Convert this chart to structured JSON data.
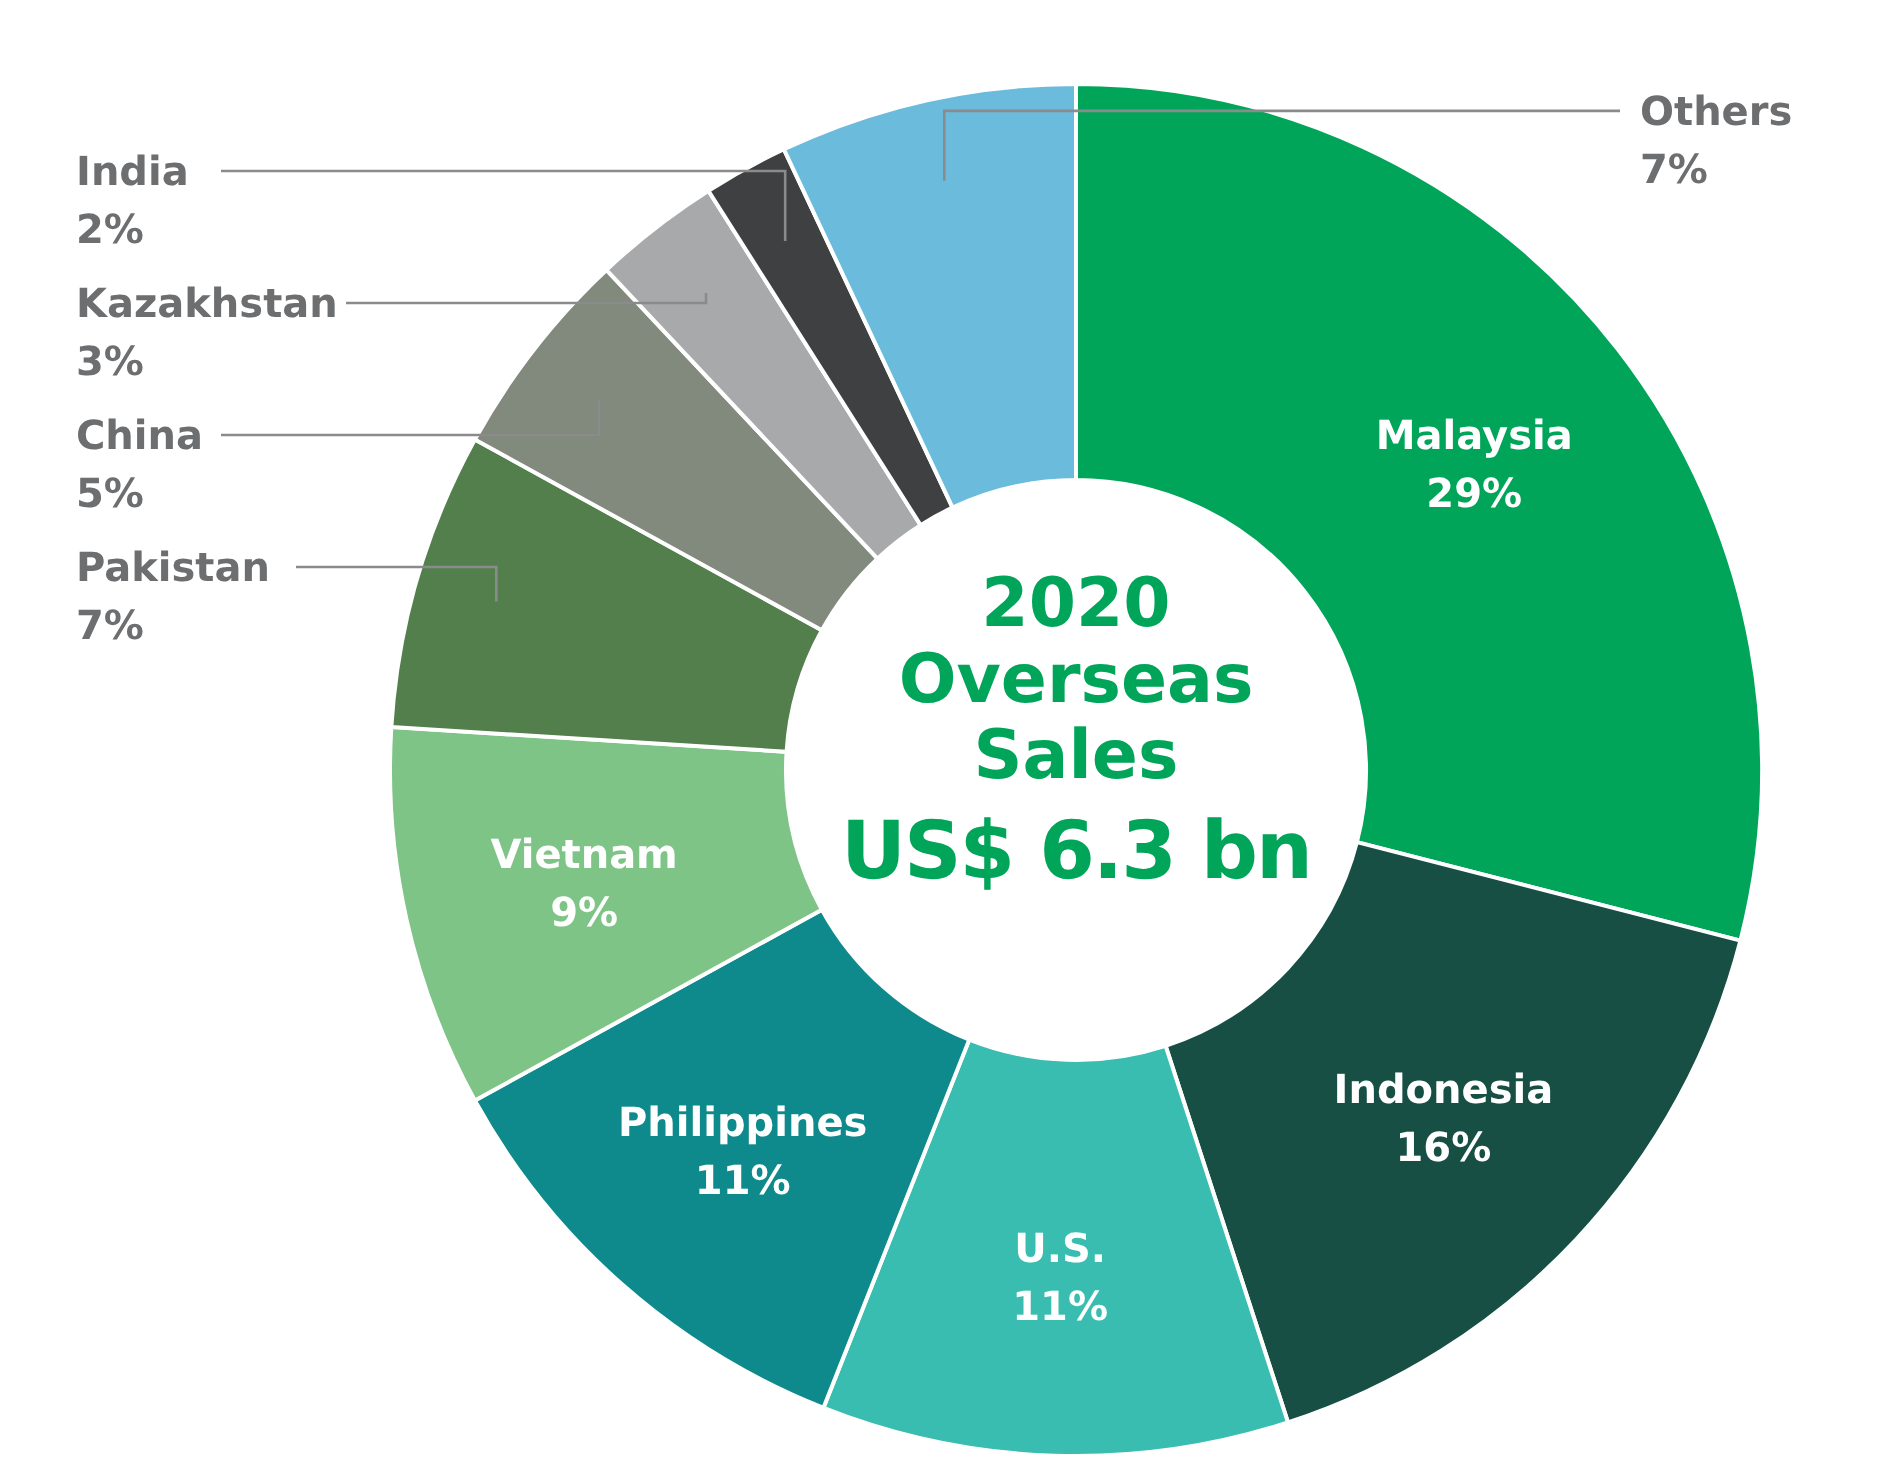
{
  "chart_data": {
    "type": "donut",
    "title": "2020 Overseas Sales",
    "subtitle": "US$ 6.3 bn",
    "categories": [
      "Malaysia",
      "Indonesia",
      "U.S.",
      "Philippines",
      "Vietnam",
      "Pakistan",
      "China",
      "Kazakhstan",
      "India",
      "Others"
    ],
    "values": [
      29,
      16,
      11,
      11,
      9,
      7,
      5,
      3,
      2,
      7
    ],
    "value_labels": [
      "29%",
      "16%",
      "11%",
      "11%",
      "9%",
      "7%",
      "5%",
      "3%",
      "2%",
      "7%"
    ],
    "colors": [
      "#00a55a",
      "#174f45",
      "#38bdb0",
      "#0f8a8c",
      "#7ec486",
      "#527f4c",
      "#82897d",
      "#a7a9ab",
      "#3f4042",
      "#6bbcdc"
    ]
  }
}
